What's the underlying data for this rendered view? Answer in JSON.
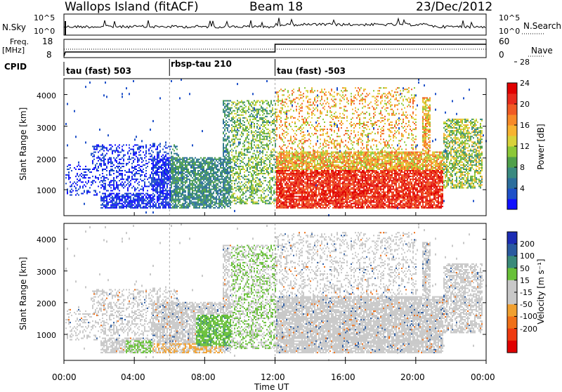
{
  "header": {
    "station": "Wallops Island (fitACF)",
    "beam": "Beam 18",
    "date": "23/Dec/2012"
  },
  "panels": {
    "nsky_label": "N.Sky",
    "nsearch_label": "N.Search",
    "freq_label": "Freq.",
    "freq_unit": "[MHz]",
    "nave_label": "Nave",
    "cpid_label": "CPID",
    "nsky_ticks": [
      "10^5",
      "10^0"
    ],
    "nsearch_ticks": [
      "10^5",
      "10^0"
    ],
    "freq_ticks": [
      "18",
      "8"
    ],
    "nave_ticks": [
      "60",
      "0"
    ]
  },
  "cpid_segments": [
    {
      "label": "tau (fast) 503",
      "start": 0,
      "end": 6
    },
    {
      "label": "rbsp-tau 210",
      "start": 6,
      "end": 12
    },
    {
      "label": "tau (fast) -503",
      "start": 12,
      "end": 24
    }
  ],
  "chart_data": [
    {
      "type": "heatmap",
      "ylabel": "Slant Range [km]",
      "xlim": [
        0,
        24
      ],
      "ylim": [
        180,
        4500
      ],
      "yticks": [
        "1000",
        "2000",
        "3000",
        "4000"
      ],
      "colorbar": {
        "title": "Power [dB]",
        "ticks": [
          "4",
          "8",
          "12",
          "16",
          "20",
          "24",
          "28"
        ],
        "colors": [
          "#1010ff",
          "#1e50c8",
          "#2c6e9c",
          "#3a8a80",
          "#4fa04a",
          "#8cc837",
          "#d8d23a",
          "#f7b330",
          "#f78a28",
          "#f05a24",
          "#e82a1c",
          "#e00000"
        ]
      }
    },
    {
      "type": "heatmap",
      "ylabel": "Slant Range [km]",
      "xlim": [
        0,
        24
      ],
      "ylim": [
        180,
        4500
      ],
      "yticks": [
        "1000",
        "2000",
        "3000",
        "4000"
      ],
      "colorbar": {
        "title": "Velocity [m s⁻¹]",
        "ticks": [
          "200",
          "100",
          "50",
          "15",
          "-15",
          "-50",
          "-100",
          "-200"
        ],
        "colors": [
          "#1c2cb4",
          "#2a5aa0",
          "#3a8a7a",
          "#68c038",
          "#c8c8c8",
          "#c8c8c8",
          "#f0a030",
          "#f07018",
          "#ee3a10",
          "#e00000"
        ]
      }
    }
  ],
  "x_axis": {
    "ticks": [
      "00:00",
      "04:00",
      "08:00",
      "12:00",
      "16:00",
      "20:00",
      "00:00"
    ],
    "label": "Time UT"
  }
}
